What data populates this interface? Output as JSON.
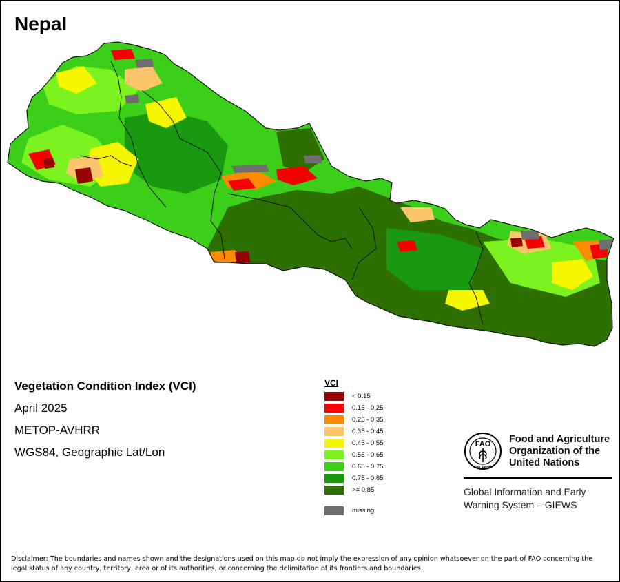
{
  "map": {
    "title": "Nepal",
    "region": "Nepal",
    "palette": {
      "very_dark_green": "#2d6f00",
      "dark_green": "#18990f",
      "green": "#3ccf19",
      "light_green": "#7cf21e",
      "yellow": "#f6f600",
      "tan": "#fcc56b",
      "orange": "#fb8b00",
      "red": "#f50000",
      "dark_red": "#970000",
      "missing": "#6e6e6e",
      "boundary": "#111111"
    }
  },
  "info": {
    "index_name": "Vegetation Condition Index (VCI)",
    "period": "April 2025",
    "sensor": "METOP-AVHRR",
    "projection": "WGS84, Geographic Lat/Lon"
  },
  "legend": {
    "title": "VCI",
    "classes": [
      {
        "label": "< 0.15",
        "color": "#970000"
      },
      {
        "label": "0.15 - 0.25",
        "color": "#f50000"
      },
      {
        "label": "0.25 - 0.35",
        "color": "#fb8b00"
      },
      {
        "label": "0.35 - 0.45",
        "color": "#fcc56b"
      },
      {
        "label": "0.45 - 0.55",
        "color": "#f6f600"
      },
      {
        "label": "0.55 - 0.65",
        "color": "#7cf21e"
      },
      {
        "label": "0.65 - 0.75",
        "color": "#3ccf19"
      },
      {
        "label": "0.75 - 0.85",
        "color": "#18990f"
      },
      {
        "label": ">= 0.85",
        "color": "#2d6f00"
      }
    ],
    "missing": {
      "label": "missing",
      "color": "#6e6e6e"
    }
  },
  "organization": {
    "logo_letters": "FAO",
    "logo_motto": "FIAT PANIS",
    "name_lines": [
      "Food and Agriculture",
      "Organization of the",
      "United Nations"
    ],
    "program_lines": [
      "Global Information and Early",
      "Warning System – GIEWS"
    ]
  },
  "disclaimer": "Disclaimer: The boundaries and names shown and the designations used on this map do not imply the expression of any opinion whatsoever on the part of FAO concerning the legal status of any country, territory, area or of its authorities, or concerning the delimitation of its frontiers and boundaries."
}
